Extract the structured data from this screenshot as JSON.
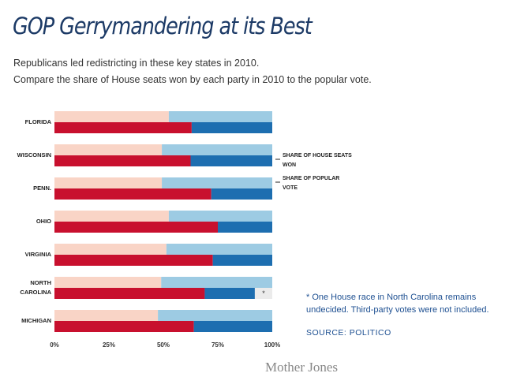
{
  "chart_data": {
    "type": "paired-stacked-bar",
    "title": "GOP Gerrymandering at its Best",
    "subtitle": [
      "Republicans led redistricting in these key states in 2010.",
      "Compare the share of House seats won by each party in 2010 to the popular vote."
    ],
    "categories": [
      "FLORIDA",
      "WISCONSIN",
      "PENN.",
      "OHIO",
      "VIRGINIA",
      "NORTH CAROLINA",
      "MICHIGAN"
    ],
    "series": [
      {
        "name": "SHARE OF POPULAR VOTE",
        "republican_color": "#f9d4c6",
        "democrat_color": "#9dcbe3",
        "republican": [
          52.5,
          49.3,
          49.3,
          52.5,
          51.4,
          49,
          47.5
        ],
        "democrat": [
          47.5,
          50.7,
          50.7,
          47.5,
          48.6,
          51,
          52.5
        ]
      },
      {
        "name": "SHARE OF HOUSE SEATS WON",
        "republican_color": "#c8102e",
        "democrat_color": "#1d6eb0",
        "undecided_color": "#ebebeb",
        "republican": [
          63,
          62.5,
          72,
          75,
          72.7,
          69,
          64
        ],
        "democrat": [
          37,
          37.5,
          28,
          25,
          27.3,
          23,
          36
        ],
        "undecided": [
          null,
          null,
          null,
          null,
          null,
          8,
          null
        ],
        "undecided_label": "*"
      }
    ],
    "legend_order": [
      1,
      0
    ],
    "xlim": [
      0,
      100
    ],
    "xticks": [
      {
        "value": 0,
        "label": "0%"
      },
      {
        "value": 25,
        "label": "25%"
      },
      {
        "value": 50,
        "label": "50%"
      },
      {
        "value": 75,
        "label": "75%"
      },
      {
        "value": 100,
        "label": "100%"
      }
    ],
    "grid": false,
    "note": "* One House race in North Carolina remains undecided. Third-party votes were not included.",
    "source": "SOURCE: POLITICO",
    "credit": "Mother Jones"
  }
}
